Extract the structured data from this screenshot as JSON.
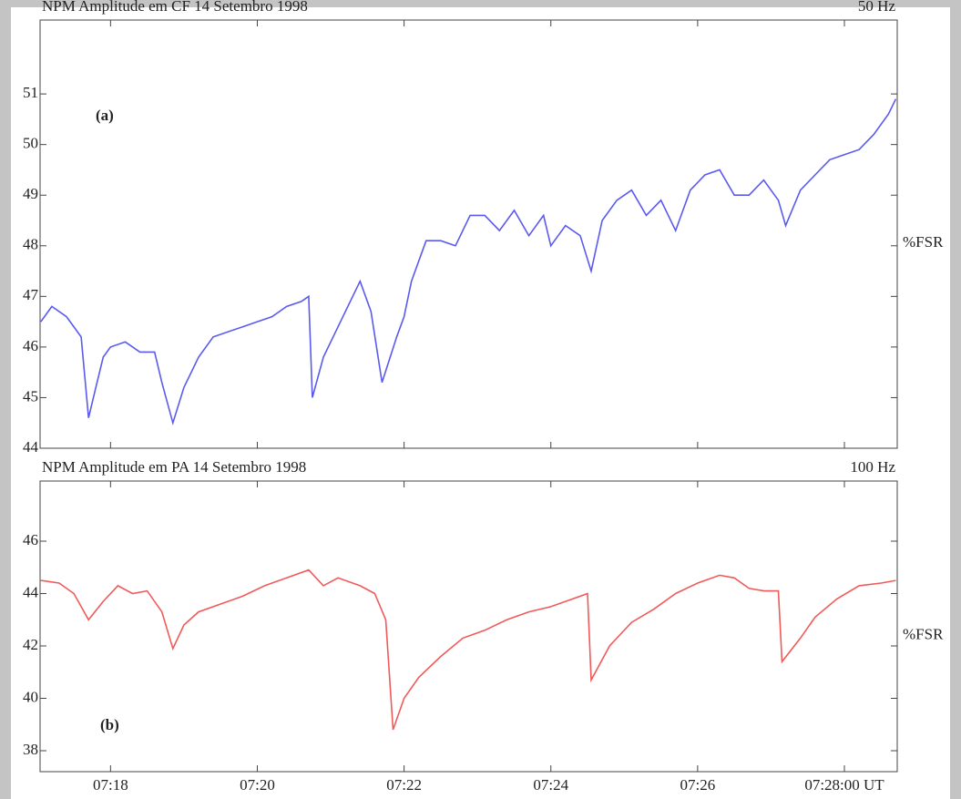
{
  "chart_data": [
    {
      "type": "line",
      "title": "NPM Amplitude em CF   14 Setembro 1998",
      "frequency": "50 Hz",
      "y_label": "%FSR",
      "annotation": "(a)",
      "x": [
        17.05,
        17.2,
        17.4,
        17.6,
        17.7,
        17.8,
        17.9,
        18.0,
        18.2,
        18.4,
        18.6,
        18.7,
        18.85,
        19.0,
        19.2,
        19.4,
        19.6,
        19.8,
        20.0,
        20.2,
        20.4,
        20.6,
        20.7,
        20.75,
        20.9,
        21.1,
        21.3,
        21.4,
        21.55,
        21.7,
        21.9,
        22.0,
        22.1,
        22.3,
        22.5,
        22.7,
        22.9,
        23.1,
        23.3,
        23.5,
        23.7,
        23.9,
        24.0,
        24.2,
        24.4,
        24.55,
        24.7,
        24.9,
        25.1,
        25.3,
        25.5,
        25.7,
        25.9,
        26.1,
        26.3,
        26.5,
        26.7,
        26.9,
        27.1,
        27.2,
        27.4,
        27.6,
        27.8,
        28.0,
        28.2,
        28.4,
        28.6,
        28.7
      ],
      "series": [
        {
          "name": "CF",
          "color": "#5a5af0",
          "values": [
            46.5,
            46.8,
            46.6,
            46.2,
            44.6,
            45.2,
            45.8,
            46.0,
            46.1,
            45.9,
            45.9,
            45.3,
            44.5,
            45.2,
            45.8,
            46.2,
            46.3,
            46.4,
            46.5,
            46.6,
            46.8,
            46.9,
            47.0,
            45.0,
            45.8,
            46.4,
            47.0,
            47.3,
            46.7,
            45.3,
            46.2,
            46.6,
            47.3,
            48.1,
            48.1,
            48.0,
            48.6,
            48.6,
            48.3,
            48.7,
            48.2,
            48.6,
            48.0,
            48.4,
            48.2,
            47.5,
            48.5,
            48.9,
            49.1,
            48.6,
            48.9,
            48.3,
            49.1,
            49.4,
            49.5,
            49.0,
            49.0,
            49.3,
            48.9,
            48.4,
            49.1,
            49.4,
            49.7,
            49.8,
            49.9,
            50.2,
            50.6,
            50.9
          ]
        }
      ],
      "xlim": [
        17.04,
        28.72
      ],
      "xticks": [
        18,
        20,
        22,
        24,
        26,
        28
      ],
      "ylim": [
        44,
        52.1
      ],
      "yticks": [
        44,
        45,
        46,
        47,
        48,
        49,
        50,
        51
      ]
    },
    {
      "type": "line",
      "title": "NPM Amplitude em PA   14 Setembro 1998",
      "frequency": "100 Hz",
      "y_label": "%FSR",
      "annotation": "(b)",
      "x": [
        17.05,
        17.3,
        17.5,
        17.7,
        17.9,
        18.1,
        18.3,
        18.5,
        18.7,
        18.85,
        19.0,
        19.2,
        19.5,
        19.8,
        20.1,
        20.4,
        20.7,
        20.9,
        21.1,
        21.4,
        21.6,
        21.75,
        21.85,
        22.0,
        22.2,
        22.5,
        22.8,
        23.1,
        23.4,
        23.7,
        24.0,
        24.3,
        24.5,
        24.55,
        24.8,
        25.1,
        25.4,
        25.7,
        26.0,
        26.3,
        26.5,
        26.7,
        26.9,
        27.1,
        27.15,
        27.4,
        27.6,
        27.9,
        28.2,
        28.5,
        28.7
      ],
      "series": [
        {
          "name": "PA",
          "color": "#f05a5a",
          "values": [
            44.5,
            44.4,
            44.0,
            43.0,
            43.7,
            44.3,
            44.0,
            44.1,
            43.3,
            41.9,
            42.8,
            43.3,
            43.6,
            43.9,
            44.3,
            44.6,
            44.9,
            44.3,
            44.6,
            44.3,
            44.0,
            43.0,
            38.8,
            40.0,
            40.8,
            41.6,
            42.3,
            42.6,
            43.0,
            43.3,
            43.5,
            43.8,
            44.0,
            40.7,
            42.0,
            42.9,
            43.4,
            44.0,
            44.4,
            44.7,
            44.6,
            44.2,
            44.1,
            44.1,
            41.4,
            42.3,
            43.1,
            43.8,
            44.3,
            44.4,
            44.5
          ]
        }
      ],
      "xlim": [
        17.04,
        28.72
      ],
      "xticks": [
        {
          "value": 18,
          "label": "07:18"
        },
        {
          "value": 20,
          "label": "07:20"
        },
        {
          "value": 22,
          "label": "07:22"
        },
        {
          "value": 24,
          "label": "07:24"
        },
        {
          "value": 26,
          "label": "07:26"
        },
        {
          "value": 28,
          "label": "07:28:00 UT"
        }
      ],
      "ylim": [
        37.2,
        47.6
      ],
      "yticks": [
        38,
        40,
        42,
        44,
        46
      ]
    }
  ]
}
